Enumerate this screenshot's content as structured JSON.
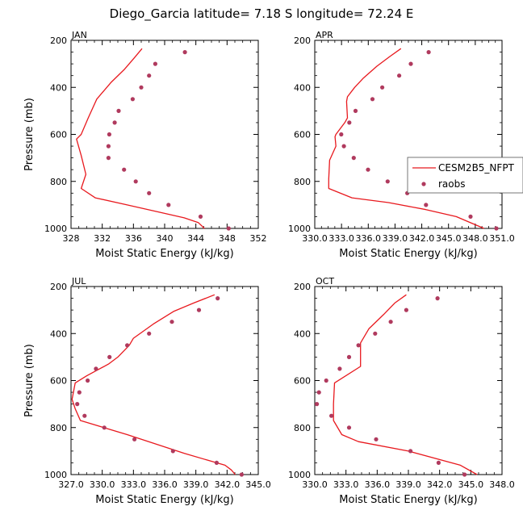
{
  "title": "Diego_Garcia  latitude= 7.18 S longitude= 72.24 E",
  "legend": {
    "model_label": "CESM2B5_NFPT",
    "obs_label": "raobs"
  },
  "colors": {
    "model": "#e8191e",
    "obs": "#b03a5e"
  },
  "chart_data": [
    {
      "type": "line",
      "panel_label": "JAN",
      "xlabel": "Moist Static Energy (kJ/kg)",
      "ylabel": "Pressure (mb)",
      "xlim": [
        328,
        352
      ],
      "ylim": [
        200,
        1000
      ],
      "x_ticks": [
        328,
        332,
        336,
        340,
        344,
        348,
        352
      ],
      "x_tick_labels": [
        "328",
        "332",
        "336",
        "340",
        "344",
        "348",
        "352"
      ],
      "y_ticks": [
        200,
        400,
        600,
        800,
        1000
      ],
      "y_tick_labels": [
        "200",
        "400",
        "600",
        "800",
        "1000"
      ],
      "series": [
        {
          "name": "CESM2B5_NFPT",
          "kind": "line",
          "x": [
            337.1,
            336.1,
            334.8,
            333.1,
            331.3,
            330.2,
            329.3,
            328.7,
            329.3,
            329.9,
            329.3,
            331.1,
            335.2,
            339.2,
            342.5,
            344.3,
            345.1
          ],
          "y": [
            235,
            275,
            325,
            380,
            450,
            530,
            600,
            620,
            690,
            770,
            830,
            870,
            900,
            930,
            955,
            975,
            1000
          ]
        },
        {
          "name": "raobs",
          "kind": "scatter",
          "x": [
            342.6,
            338.8,
            338.0,
            337.0,
            335.9,
            334.1,
            333.6,
            332.9,
            332.8,
            332.8,
            334.8,
            336.3,
            338.0,
            340.5,
            344.6,
            348.2
          ],
          "y": [
            250,
            300,
            350,
            400,
            450,
            500,
            550,
            600,
            650,
            700,
            750,
            800,
            850,
            900,
            950,
            1000
          ]
        }
      ]
    },
    {
      "type": "line",
      "panel_label": "APR",
      "xlabel": "Moist Static Energy (kJ/kg)",
      "ylabel": "",
      "xlim": [
        330.03,
        351.03
      ],
      "ylim": [
        200,
        1000
      ],
      "x_ticks": [
        330.03,
        333.03,
        336.03,
        339.03,
        342.03,
        345.03,
        348.03,
        351.03
      ],
      "x_tick_labels": [
        "330.0",
        "333.0",
        "336.0",
        "339.0",
        "342.0",
        "345.0",
        "348.0",
        "351.0"
      ],
      "y_ticks": [
        200,
        400,
        600,
        800,
        1000
      ],
      "y_tick_labels": [
        "200",
        "400",
        "600",
        "800",
        "1000"
      ],
      "series": [
        {
          "name": "CESM2B5_NFPT",
          "kind": "line",
          "x": [
            339.7,
            338.4,
            337.0,
            335.5,
            334.5,
            333.7,
            333.6,
            333.7,
            333.4,
            332.4,
            332.3,
            332.4,
            331.7,
            331.6,
            331.6,
            334.2,
            338.3,
            342.5,
            345.9,
            349.0
          ],
          "y": [
            235,
            270,
            310,
            360,
            400,
            440,
            460,
            530,
            550,
            600,
            610,
            650,
            710,
            790,
            830,
            870,
            890,
            920,
            950,
            1000
          ]
        },
        {
          "name": "raobs",
          "kind": "scatter",
          "x": [
            342.8,
            340.8,
            339.5,
            337.6,
            336.5,
            334.6,
            333.9,
            333.0,
            333.3,
            334.4,
            336.0,
            338.2,
            340.4,
            342.5,
            347.5,
            350.4
          ],
          "y": [
            250,
            300,
            350,
            400,
            450,
            500,
            550,
            600,
            650,
            700,
            750,
            800,
            850,
            900,
            950,
            1000
          ]
        }
      ]
    },
    {
      "type": "line",
      "panel_label": "JUL",
      "xlabel": "Moist Static Energy (kJ/kg)",
      "ylabel": "Pressure (mb)",
      "xlim": [
        327,
        345
      ],
      "ylim": [
        200,
        1000
      ],
      "x_ticks": [
        327,
        330,
        333,
        336,
        339,
        342,
        345
      ],
      "x_tick_labels": [
        "327.0",
        "330.0",
        "333.0",
        "336.0",
        "339.0",
        "342.0",
        "345.0"
      ],
      "y_ticks": [
        200,
        400,
        600,
        800,
        1000
      ],
      "y_tick_labels": [
        "200",
        "400",
        "600",
        "800",
        "1000"
      ],
      "series": [
        {
          "name": "CESM2B5_NFPT",
          "kind": "line",
          "x": [
            340.8,
            338.8,
            336.9,
            334.9,
            333.0,
            332.6,
            331.5,
            330.6,
            328.5,
            327.4,
            327.1,
            327.4,
            327.9,
            332.4,
            337.9,
            341.8,
            342.4,
            342.8
          ],
          "y": [
            235,
            270,
            305,
            360,
            420,
            450,
            500,
            530,
            580,
            610,
            680,
            720,
            770,
            830,
            910,
            960,
            980,
            1000
          ]
        },
        {
          "name": "raobs",
          "kind": "scatter",
          "x": [
            341.1,
            339.3,
            336.7,
            334.5,
            332.4,
            330.7,
            329.4,
            328.6,
            327.8,
            327.6,
            328.3,
            330.2,
            333.1,
            336.8,
            341.0,
            343.4
          ],
          "y": [
            250,
            300,
            350,
            400,
            450,
            500,
            550,
            600,
            650,
            700,
            750,
            800,
            850,
            900,
            950,
            1000
          ]
        }
      ]
    },
    {
      "type": "line",
      "panel_label": "OCT",
      "xlabel": "Moist Static Energy (kJ/kg)",
      "ylabel": "",
      "xlim": [
        330,
        348
      ],
      "ylim": [
        200,
        1000
      ],
      "x_ticks": [
        330,
        333,
        336,
        339,
        342,
        345,
        348
      ],
      "x_tick_labels": [
        "330.0",
        "333.0",
        "336.0",
        "339.0",
        "342.0",
        "345.0",
        "348.0"
      ],
      "y_ticks": [
        200,
        400,
        600,
        800,
        1000
      ],
      "y_tick_labels": [
        "200",
        "400",
        "600",
        "800",
        "1000"
      ],
      "series": [
        {
          "name": "CESM2B5_NFPT",
          "kind": "line",
          "x": [
            338.8,
            337.7,
            336.6,
            335.2,
            334.4,
            334.4,
            331.9,
            331.8,
            331.8,
            332.6,
            334.2,
            339.0,
            344.0,
            345.6
          ],
          "y": [
            235,
            270,
            320,
            380,
            440,
            540,
            610,
            700,
            770,
            830,
            860,
            900,
            960,
            1000
          ]
        },
        {
          "name": "raobs",
          "kind": "scatter",
          "x": [
            341.8,
            338.8,
            337.3,
            335.8,
            334.2,
            333.3,
            332.4,
            331.1,
            330.4,
            330.2,
            331.6,
            333.3,
            335.9,
            339.2,
            341.9,
            344.4
          ],
          "y": [
            250,
            300,
            350,
            400,
            450,
            500,
            550,
            600,
            650,
            700,
            750,
            800,
            850,
            900,
            950,
            1000
          ]
        }
      ]
    }
  ]
}
